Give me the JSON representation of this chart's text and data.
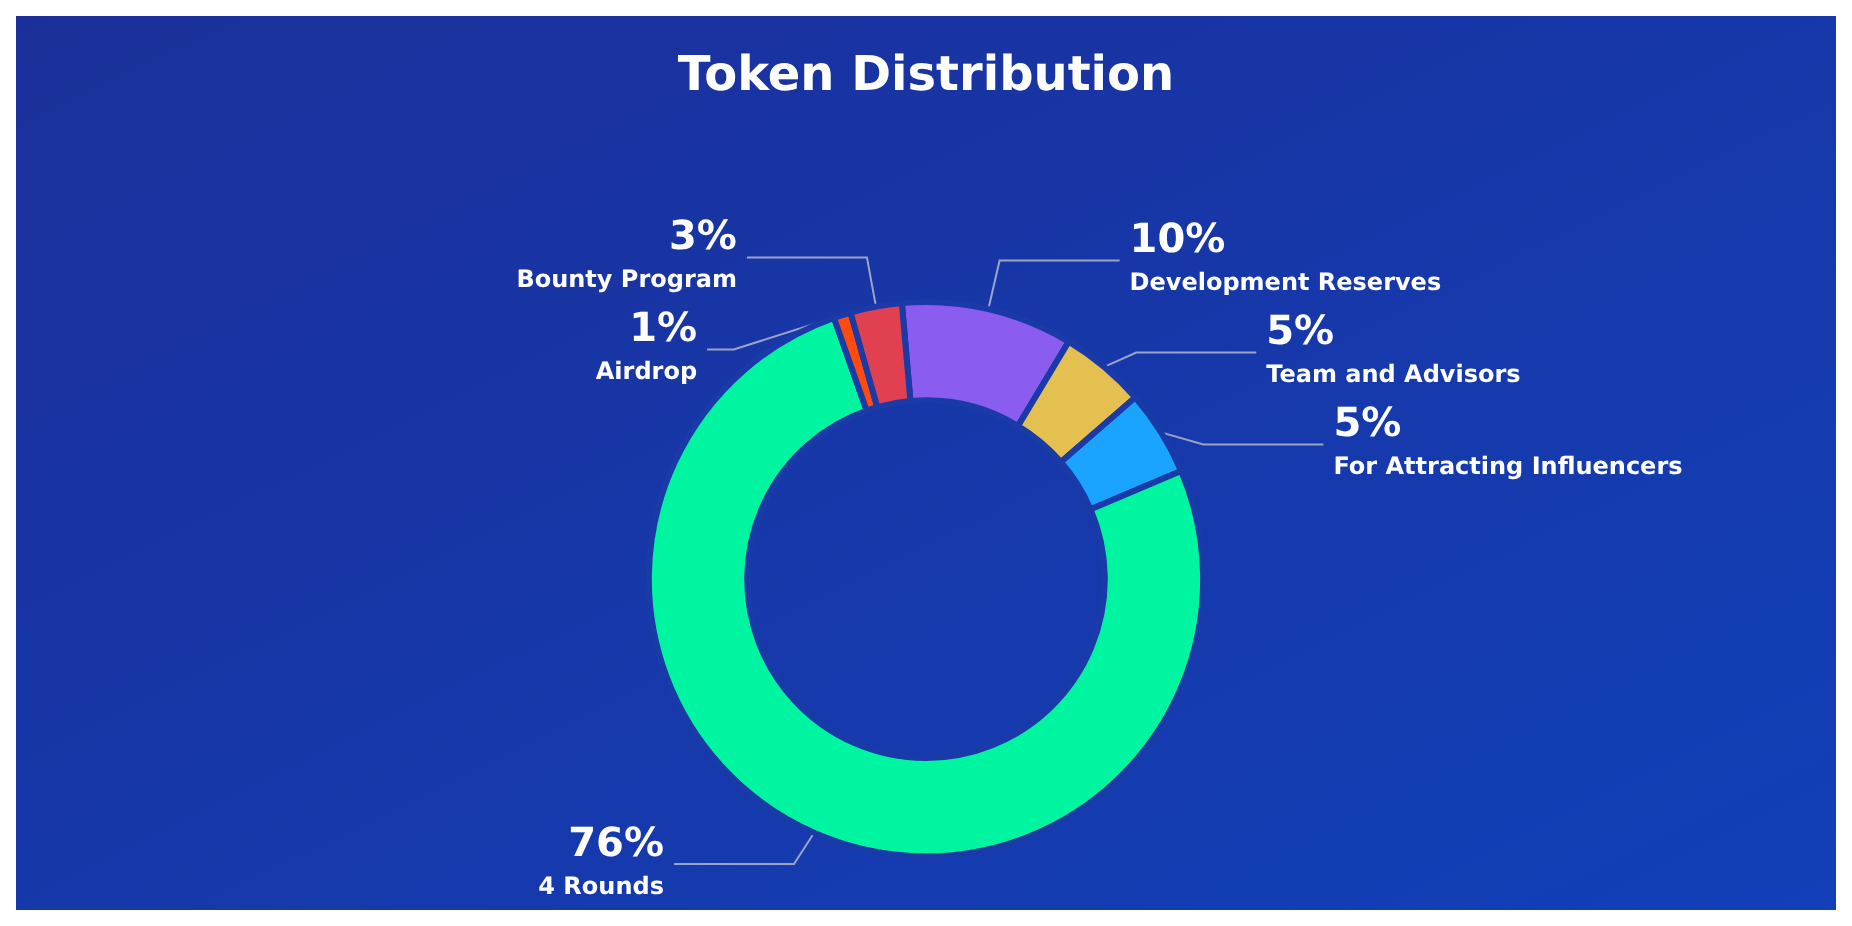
{
  "chart_data": {
    "type": "donut",
    "title": "Token Distribution",
    "categories": [
      "Development Reserves",
      "Team and Advisors",
      "For Attracting Influencers",
      "4 Rounds",
      "Airdrop",
      "Bounty Program"
    ],
    "values": [
      10,
      5,
      5,
      76,
      1,
      3
    ],
    "value_labels": [
      "10%",
      "5%",
      "5%",
      "76%",
      "1%",
      "3%"
    ],
    "colors": [
      "#8b5cf0",
      "#e3c050",
      "#1aa3ff",
      "#00f5a0",
      "#ff4a10",
      "#e0404f"
    ],
    "legend": false
  }
}
